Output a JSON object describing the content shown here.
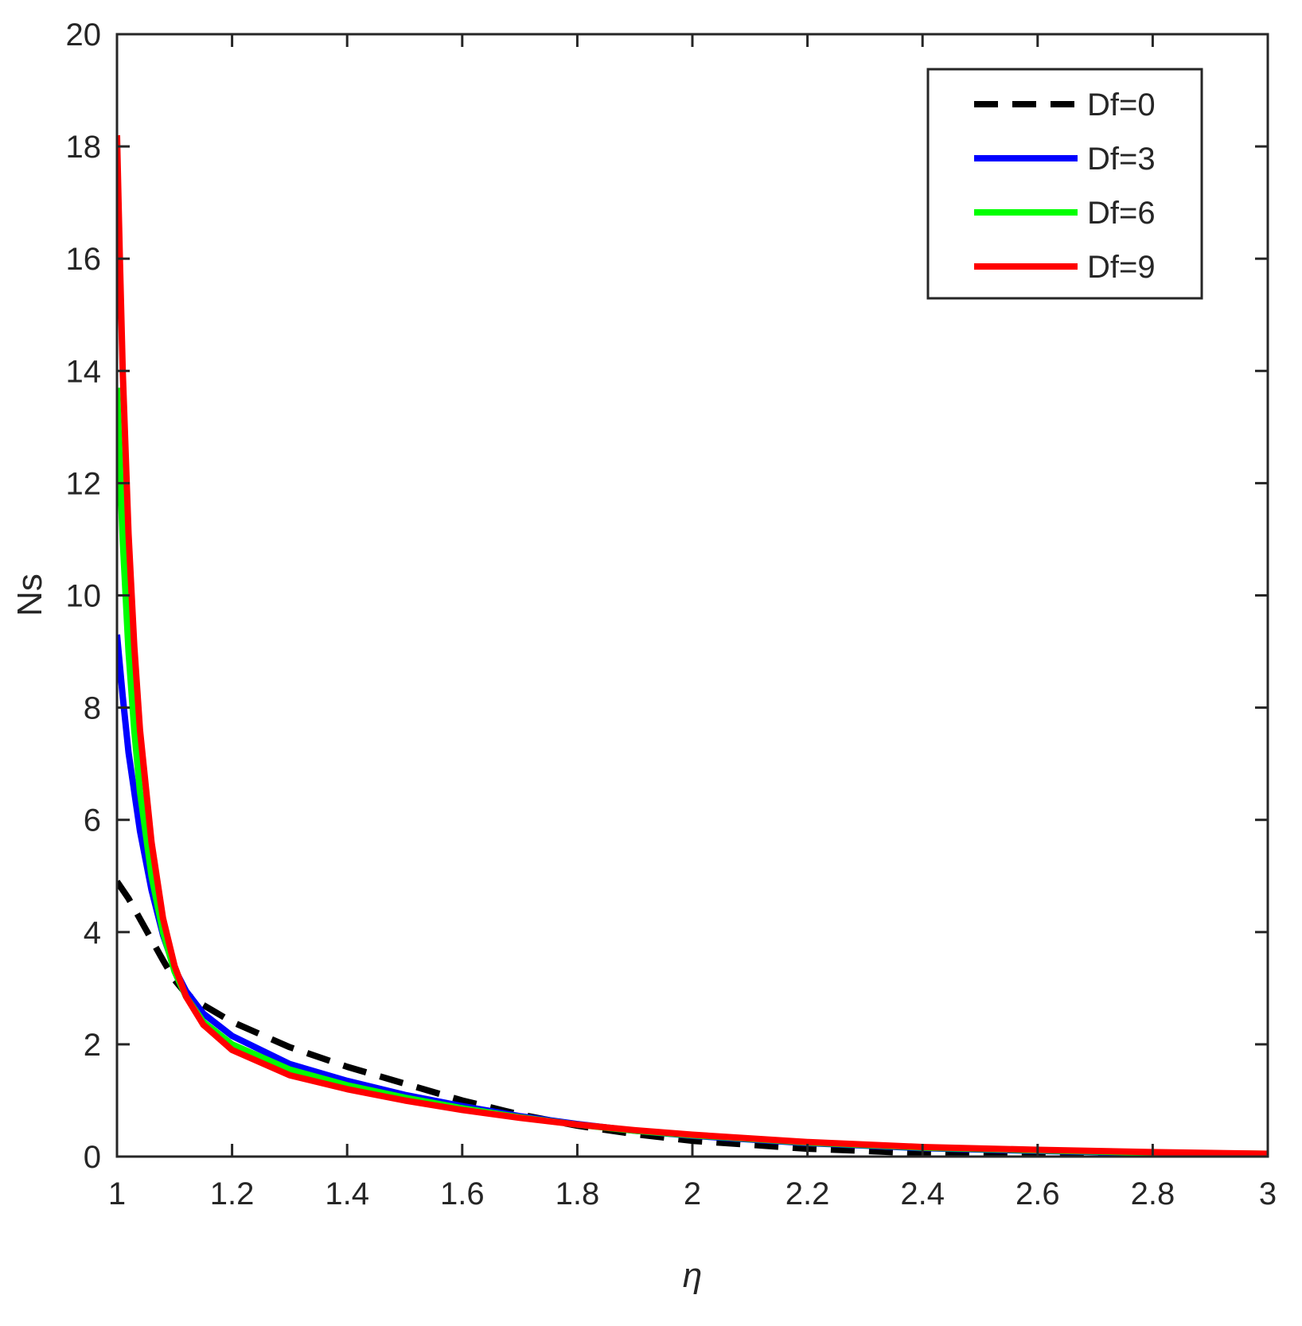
{
  "chart_data": {
    "type": "line",
    "xlabel": "η",
    "ylabel": "Ns",
    "xlim": [
      1,
      3
    ],
    "ylim": [
      0,
      20
    ],
    "xticks": [
      "1",
      "1.2",
      "1.4",
      "1.6",
      "1.8",
      "2",
      "2.2",
      "2.4",
      "2.6",
      "2.8",
      "3"
    ],
    "yticks": [
      "0",
      "2",
      "4",
      "6",
      "8",
      "10",
      "12",
      "14",
      "16",
      "18",
      "20"
    ],
    "grid": false,
    "legend_position": "top-right",
    "series": [
      {
        "name": "Df=0",
        "color": "#000000",
        "style": "dashed",
        "x": [
          1.0,
          1.02,
          1.05,
          1.08,
          1.1,
          1.12,
          1.15,
          1.2,
          1.3,
          1.4,
          1.5,
          1.6,
          1.7,
          1.8,
          1.9,
          2.0,
          2.2,
          2.4,
          2.6,
          2.8,
          3.0
        ],
        "y": [
          4.9,
          4.6,
          4.05,
          3.5,
          3.15,
          2.9,
          2.7,
          2.4,
          1.95,
          1.6,
          1.3,
          1.0,
          0.75,
          0.55,
          0.4,
          0.28,
          0.14,
          0.06,
          0.02,
          0.01,
          0.0
        ]
      },
      {
        "name": "Df=3",
        "color": "#0000ff",
        "style": "solid",
        "x": [
          1.0,
          1.01,
          1.02,
          1.04,
          1.06,
          1.08,
          1.1,
          1.12,
          1.15,
          1.2,
          1.3,
          1.4,
          1.5,
          1.6,
          1.7,
          1.8,
          1.9,
          2.0,
          2.2,
          2.4,
          2.6,
          2.8,
          3.0
        ],
        "y": [
          9.3,
          8.2,
          7.2,
          5.8,
          4.75,
          3.95,
          3.35,
          2.95,
          2.55,
          2.15,
          1.65,
          1.35,
          1.1,
          0.9,
          0.72,
          0.58,
          0.46,
          0.37,
          0.24,
          0.15,
          0.1,
          0.06,
          0.04
        ]
      },
      {
        "name": "Df=6",
        "color": "#00ff00",
        "style": "solid",
        "x": [
          1.0,
          1.005,
          1.01,
          1.02,
          1.03,
          1.04,
          1.06,
          1.08,
          1.1,
          1.12,
          1.15,
          1.2,
          1.3,
          1.4,
          1.5,
          1.6,
          1.7,
          1.8,
          1.9,
          2.0,
          2.2,
          2.4,
          2.6,
          2.8,
          3.0
        ],
        "y": [
          13.7,
          12.3,
          11.0,
          9.0,
          7.6,
          6.5,
          5.0,
          4.0,
          3.3,
          2.85,
          2.4,
          2.0,
          1.55,
          1.27,
          1.05,
          0.86,
          0.7,
          0.57,
          0.46,
          0.38,
          0.25,
          0.16,
          0.11,
          0.07,
          0.05
        ]
      },
      {
        "name": "Df=9",
        "color": "#ff0000",
        "style": "solid",
        "x": [
          1.0,
          1.005,
          1.01,
          1.02,
          1.03,
          1.04,
          1.06,
          1.08,
          1.1,
          1.12,
          1.15,
          1.2,
          1.3,
          1.4,
          1.5,
          1.6,
          1.7,
          1.8,
          1.9,
          2.0,
          2.2,
          2.4,
          2.6,
          2.8,
          3.0
        ],
        "y": [
          18.2,
          16.0,
          14.0,
          11.1,
          9.1,
          7.6,
          5.6,
          4.25,
          3.4,
          2.85,
          2.35,
          1.9,
          1.45,
          1.2,
          1.0,
          0.83,
          0.69,
          0.57,
          0.47,
          0.39,
          0.26,
          0.17,
          0.12,
          0.08,
          0.05
        ]
      }
    ]
  }
}
